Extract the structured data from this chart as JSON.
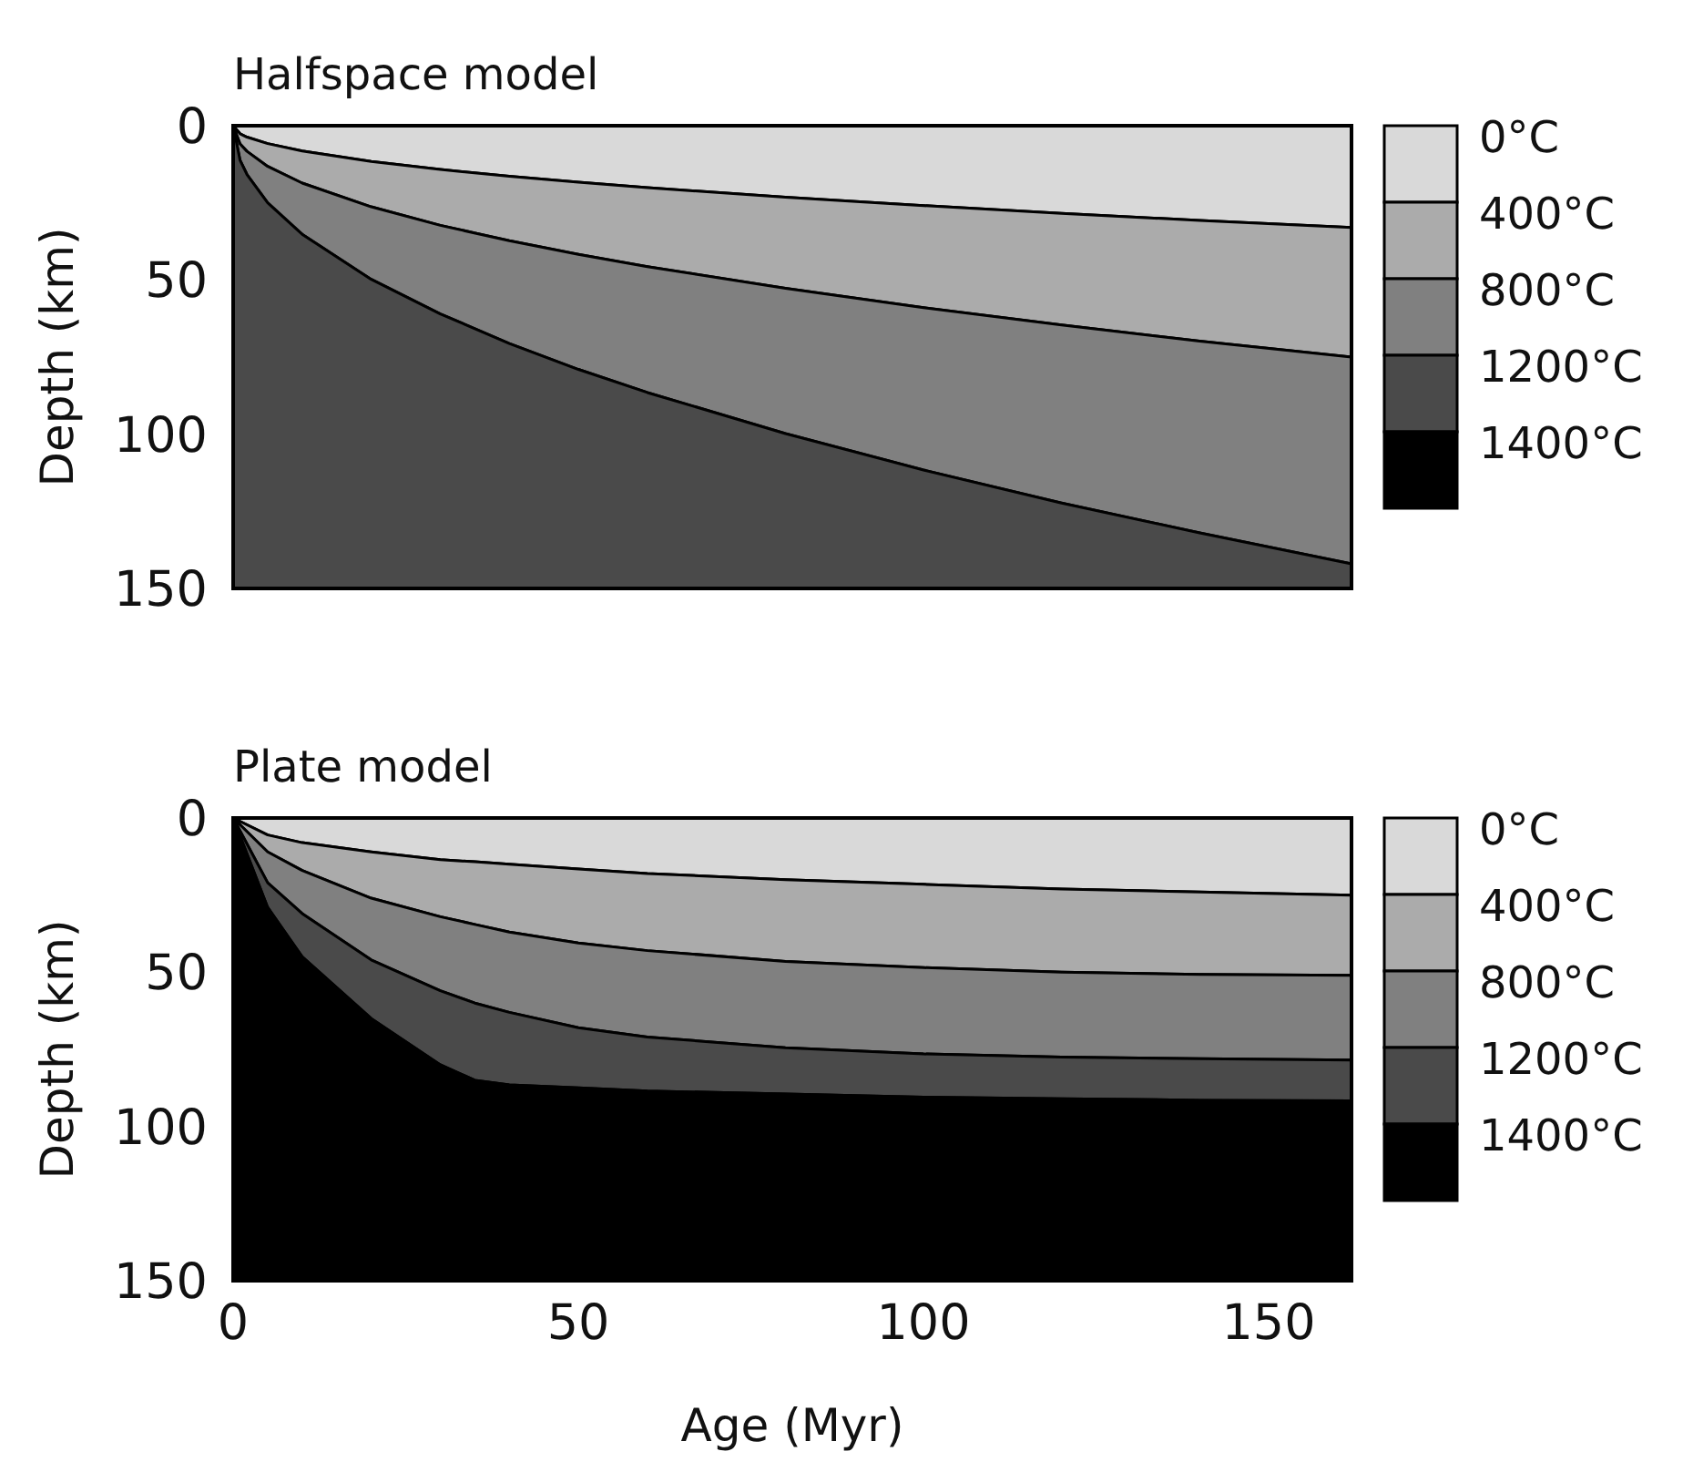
{
  "chart_data": [
    {
      "type": "area",
      "stacked": true,
      "title": "Halfspace model",
      "ylabel": "Depth (km)",
      "xlim": [
        0,
        162
      ],
      "ylim": [
        150,
        0
      ],
      "yticks": [
        0,
        50,
        100,
        150
      ],
      "tick_labels": "y",
      "legend": "right",
      "grid": false,
      "x": [
        0,
        1,
        2,
        5,
        10,
        20,
        30,
        40,
        50,
        60,
        80,
        100,
        120,
        140,
        162
      ],
      "series": [
        {
          "name": "0°C",
          "color": "#d9d9d9",
          "values": [
            0,
            2.6,
            3.7,
            5.8,
            8.2,
            11.6,
            14.2,
            16.4,
            18.3,
            20.1,
            23.2,
            25.9,
            28.4,
            30.7,
            33
          ]
        },
        {
          "name": "400°C",
          "color": "#ababab",
          "values": [
            0,
            3.3,
            4.6,
            7.4,
            10.4,
            14.7,
            18.1,
            20.9,
            23.4,
            25.6,
            29.5,
            33.1,
            36.2,
            39.1,
            42
          ]
        },
        {
          "name": "800°C",
          "color": "#808080",
          "values": [
            0,
            5.3,
            7.5,
            11.8,
            16.6,
            23.5,
            28.7,
            33.3,
            37.3,
            40.8,
            47.1,
            52.6,
            57.7,
            62.2,
            67
          ]
        },
        {
          "name": "1200°C",
          "color": "#4a4a4a",
          "values": [
            150,
            138.8,
            134.2,
            125,
            114.8,
            100.2,
            89,
            79.4,
            71,
            63.5,
            50.2,
            38.4,
            27.7,
            18,
            8
          ]
        },
        {
          "name": "1400°C",
          "color": "#000000",
          "values": [
            null,
            null,
            null,
            null,
            null,
            null,
            null,
            null,
            null,
            null,
            null,
            null,
            null,
            null,
            null
          ]
        }
      ]
    },
    {
      "type": "area",
      "stacked": true,
      "title": "Plate model",
      "ylabel": "Depth (km)",
      "xlabel": "Age (Myr)",
      "xlim": [
        0,
        162
      ],
      "xticks": [
        0,
        50,
        100,
        150
      ],
      "ylim": [
        150,
        0
      ],
      "yticks": [
        0,
        50,
        100,
        150
      ],
      "legend": "right",
      "grid": false,
      "x": [
        0,
        5,
        10,
        20,
        30,
        35,
        40,
        50,
        60,
        80,
        100,
        120,
        140,
        162
      ],
      "series": [
        {
          "name": "0°C",
          "color": "#d9d9d9",
          "values": [
            0,
            5.5,
            8,
            11,
            13.5,
            14.2,
            15,
            16.5,
            18,
            20,
            21.5,
            23,
            24,
            25
          ]
        },
        {
          "name": "400°C",
          "color": "#ababab",
          "values": [
            0,
            5.5,
            9,
            15,
            18.5,
            20.3,
            22,
            24,
            25,
            26.5,
            27,
            27,
            26.7,
            26
          ]
        },
        {
          "name": "800°C",
          "color": "#808080",
          "values": [
            0,
            10,
            14,
            20,
            24,
            25.5,
            26,
            27.5,
            28,
            28,
            28,
            27.5,
            27.3,
            27.5
          ]
        },
        {
          "name": "1200°C",
          "color": "#4a4a4a",
          "values": [
            0,
            8,
            14,
            19,
            24,
            25,
            23.5,
            19.5,
            17.5,
            15,
            14,
            13.5,
            13.5,
            13.2
          ]
        },
        {
          "name": "1400°C",
          "color": "#000000",
          "values": [
            150,
            121,
            105,
            85,
            70,
            65,
            63.5,
            62.5,
            61.5,
            60.5,
            59.5,
            59,
            58.5,
            58.3
          ]
        }
      ]
    }
  ]
}
